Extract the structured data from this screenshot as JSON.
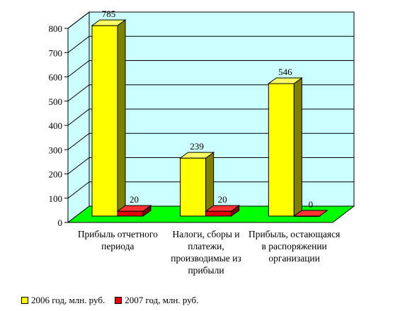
{
  "chart_data": {
    "type": "bar",
    "categories": [
      "Прибыль отчетного\nпериода",
      "Налоги, сборы и\nплатежи,\nпроизводимые из\nприбыли",
      "Прибыль, остающаяся\nв распоряжении\nорганизации"
    ],
    "series": [
      {
        "name": "2006 год, млн. руб.",
        "values": [
          785,
          239,
          546
        ],
        "color": "#ffff00",
        "side": "#808000",
        "top": "#ffff66"
      },
      {
        "name": "2007 год, млн. руб.",
        "values": [
          20,
          20,
          0
        ],
        "color": "#e00000",
        "side": "#800000",
        "top": "#ff3333"
      }
    ],
    "yticks": [
      0,
      100,
      200,
      300,
      400,
      500,
      600,
      700,
      800
    ],
    "ylim": [
      0,
      800
    ],
    "grid": true,
    "wall_color": "#ccffff",
    "floor_color": "#00ff00",
    "legend_position": "bottom"
  }
}
